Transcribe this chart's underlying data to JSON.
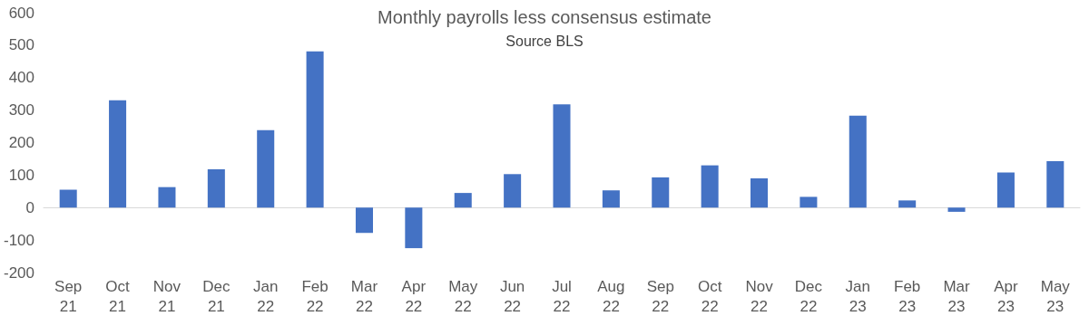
{
  "chart_data": {
    "type": "bar",
    "title": "Monthly payrolls less consensus estimate",
    "subtitle": "Source BLS",
    "categories": [
      "Sep\n21",
      "Oct\n21",
      "Nov\n21",
      "Dec\n21",
      "Jan\n22",
      "Feb\n22",
      "Mar\n22",
      "Apr\n22",
      "May\n22",
      "Jun\n22",
      "Jul\n22",
      "Aug\n22",
      "Sep\n22",
      "Oct\n22",
      "Nov\n22",
      "Dec\n22",
      "Jan\n23",
      "Feb\n23",
      "Mar\n23",
      "Apr\n23",
      "May\n23"
    ],
    "values": [
      55,
      330,
      63,
      118,
      238,
      481,
      -78,
      -125,
      45,
      103,
      318,
      53,
      93,
      130,
      90,
      33,
      283,
      22,
      -13,
      108,
      143
    ],
    "color": "#4472c4",
    "ylim": [
      -200,
      600
    ],
    "yticks": [
      -200,
      -100,
      0,
      100,
      200,
      300,
      400,
      500,
      600
    ]
  }
}
